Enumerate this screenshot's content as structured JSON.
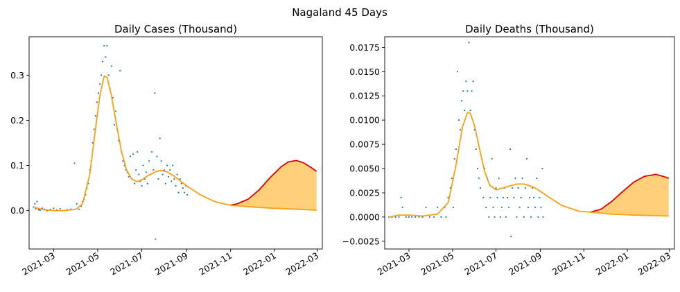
{
  "figure": {
    "title": "Nagaland 45 Days"
  },
  "colors": {
    "scatter": "#1f77b4",
    "fit": "#ff9f10",
    "forecast_line": "#e00000",
    "forecast_fill": "#ffcf7a"
  },
  "chart_data": [
    {
      "type": "scatter",
      "title": "Daily Cases (Thousand)",
      "xlabel": "",
      "ylabel": "",
      "x_ticks": [
        "2021-03",
        "2021-05",
        "2021-07",
        "2021-09",
        "2021-11",
        "2022-01",
        "2022-03"
      ],
      "y_ticks": [
        0.0,
        0.1,
        0.2,
        0.3
      ],
      "y_tick_labels": [
        "0.0",
        "0.1",
        "0.2",
        "0.3"
      ],
      "xlim": [
        "2021-01-26",
        "2022-03-08"
      ],
      "ylim": [
        -0.085,
        0.385
      ],
      "grid": false,
      "scatter_points": [
        [
          "2021-02-01",
          0.008
        ],
        [
          "2021-02-03",
          0.015
        ],
        [
          "2021-02-04",
          0.004
        ],
        [
          "2021-02-06",
          0.02
        ],
        [
          "2021-02-08",
          0.002
        ],
        [
          "2021-02-10",
          0.001
        ],
        [
          "2021-02-13",
          0.005
        ],
        [
          "2021-02-16",
          0.003
        ],
        [
          "2021-02-20",
          0.0
        ],
        [
          "2021-02-24",
          0.002
        ],
        [
          "2021-03-01",
          0.005
        ],
        [
          "2021-03-05",
          0.001
        ],
        [
          "2021-03-10",
          0.004
        ],
        [
          "2021-03-15",
          0.0
        ],
        [
          "2021-03-20",
          0.002
        ],
        [
          "2021-03-25",
          0.003
        ],
        [
          "2021-03-30",
          0.105
        ],
        [
          "2021-04-02",
          0.015
        ],
        [
          "2021-04-05",
          0.003
        ],
        [
          "2021-04-08",
          0.01
        ],
        [
          "2021-04-10",
          0.02
        ],
        [
          "2021-04-12",
          0.025
        ],
        [
          "2021-04-14",
          0.035
        ],
        [
          "2021-04-16",
          0.05
        ],
        [
          "2021-04-18",
          0.06
        ],
        [
          "2021-04-20",
          0.09
        ],
        [
          "2021-04-22",
          0.11
        ],
        [
          "2021-04-24",
          0.15
        ],
        [
          "2021-04-26",
          0.18
        ],
        [
          "2021-04-28",
          0.21
        ],
        [
          "2021-04-30",
          0.24
        ],
        [
          "2021-05-02",
          0.26
        ],
        [
          "2021-05-04",
          0.28
        ],
        [
          "2021-05-06",
          0.3
        ],
        [
          "2021-05-08",
          0.33
        ],
        [
          "2021-05-10",
          0.365
        ],
        [
          "2021-05-12",
          0.34
        ],
        [
          "2021-05-14",
          0.365
        ],
        [
          "2021-05-16",
          0.3
        ],
        [
          "2021-05-18",
          0.27
        ],
        [
          "2021-05-20",
          0.32
        ],
        [
          "2021-05-22",
          0.25
        ],
        [
          "2021-05-24",
          0.19
        ],
        [
          "2021-05-26",
          0.22
        ],
        [
          "2021-05-28",
          0.18
        ],
        [
          "2021-05-30",
          0.155
        ],
        [
          "2021-06-01",
          0.31
        ],
        [
          "2021-06-03",
          0.13
        ],
        [
          "2021-06-05",
          0.11
        ],
        [
          "2021-06-07",
          0.1
        ],
        [
          "2021-06-09",
          0.09
        ],
        [
          "2021-06-11",
          0.085
        ],
        [
          "2021-06-13",
          0.075
        ],
        [
          "2021-06-15",
          0.12
        ],
        [
          "2021-06-17",
          0.07
        ],
        [
          "2021-06-19",
          0.125
        ],
        [
          "2021-06-21",
          0.06
        ],
        [
          "2021-06-23",
          0.09
        ],
        [
          "2021-06-25",
          0.13
        ],
        [
          "2021-06-27",
          0.08
        ],
        [
          "2021-06-29",
          0.065
        ],
        [
          "2021-07-01",
          0.055
        ],
        [
          "2021-07-03",
          0.1
        ],
        [
          "2021-07-05",
          0.07
        ],
        [
          "2021-07-07",
          0.085
        ],
        [
          "2021-07-09",
          0.06
        ],
        [
          "2021-07-11",
          0.11
        ],
        [
          "2021-07-13",
          0.08
        ],
        [
          "2021-07-15",
          0.13
        ],
        [
          "2021-07-17",
          0.09
        ],
        [
          "2021-07-19",
          0.26
        ],
        [
          "2021-07-20",
          -0.063
        ],
        [
          "2021-07-22",
          0.12
        ],
        [
          "2021-07-24",
          0.07
        ],
        [
          "2021-07-26",
          0.16
        ],
        [
          "2021-07-28",
          0.11
        ],
        [
          "2021-07-30",
          0.08
        ],
        [
          "2021-08-01",
          0.09
        ],
        [
          "2021-08-03",
          0.06
        ],
        [
          "2021-08-05",
          0.1
        ],
        [
          "2021-08-07",
          0.075
        ],
        [
          "2021-08-09",
          0.09
        ],
        [
          "2021-08-11",
          0.065
        ],
        [
          "2021-08-13",
          0.1
        ],
        [
          "2021-08-15",
          0.07
        ],
        [
          "2021-08-17",
          0.055
        ],
        [
          "2021-08-19",
          0.08
        ],
        [
          "2021-08-21",
          0.04
        ],
        [
          "2021-08-23",
          0.07
        ],
        [
          "2021-08-25",
          0.06
        ],
        [
          "2021-08-27",
          0.05
        ],
        [
          "2021-08-29",
          0.04
        ],
        [
          "2021-08-31",
          0.055
        ],
        [
          "2021-09-02",
          0.035
        ]
      ],
      "fit_curve": [
        [
          "2021-02-01",
          0.008
        ],
        [
          "2021-02-15",
          0.002
        ],
        [
          "2021-03-01",
          0.0
        ],
        [
          "2021-03-15",
          0.0
        ],
        [
          "2021-04-01",
          0.003
        ],
        [
          "2021-04-10",
          0.015
        ],
        [
          "2021-04-20",
          0.08
        ],
        [
          "2021-04-27",
          0.17
        ],
        [
          "2021-05-04",
          0.255
        ],
        [
          "2021-05-10",
          0.298
        ],
        [
          "2021-05-14",
          0.295
        ],
        [
          "2021-05-20",
          0.255
        ],
        [
          "2021-05-27",
          0.19
        ],
        [
          "2021-06-03",
          0.13
        ],
        [
          "2021-06-10",
          0.09
        ],
        [
          "2021-06-17",
          0.07
        ],
        [
          "2021-06-24",
          0.064
        ],
        [
          "2021-07-01",
          0.068
        ],
        [
          "2021-07-10",
          0.078
        ],
        [
          "2021-07-20",
          0.086
        ],
        [
          "2021-07-27",
          0.089
        ],
        [
          "2021-08-05",
          0.086
        ],
        [
          "2021-08-15",
          0.076
        ],
        [
          "2021-09-01",
          0.055
        ],
        [
          "2021-09-20",
          0.035
        ],
        [
          "2021-10-10",
          0.02
        ],
        [
          "2021-10-31",
          0.012
        ]
      ],
      "forecast_upper": [
        [
          "2021-10-31",
          0.012
        ],
        [
          "2021-11-10",
          0.015
        ],
        [
          "2021-11-25",
          0.025
        ],
        [
          "2021-12-10",
          0.045
        ],
        [
          "2021-12-25",
          0.072
        ],
        [
          "2022-01-10",
          0.097
        ],
        [
          "2022-01-20",
          0.108
        ],
        [
          "2022-01-31",
          0.111
        ],
        [
          "2022-02-10",
          0.106
        ],
        [
          "2022-02-20",
          0.096
        ],
        [
          "2022-02-28",
          0.087
        ]
      ],
      "forecast_lower": [
        [
          "2021-10-31",
          0.012
        ],
        [
          "2021-12-01",
          0.008
        ],
        [
          "2022-01-01",
          0.005
        ],
        [
          "2022-02-01",
          0.003
        ],
        [
          "2022-02-28",
          0.001
        ]
      ]
    },
    {
      "type": "scatter",
      "title": "Daily Deaths (Thousand)",
      "xlabel": "",
      "ylabel": "",
      "x_ticks": [
        "2021-03",
        "2021-05",
        "2021-07",
        "2021-09",
        "2021-11",
        "2022-01",
        "2022-03"
      ],
      "y_ticks": [
        -0.0025,
        0.0,
        0.0025,
        0.005,
        0.0075,
        0.01,
        0.0125,
        0.015,
        0.0175
      ],
      "y_tick_labels": [
        "−0.0025",
        "0.0000",
        "0.0025",
        "0.0050",
        "0.0075",
        "0.0100",
        "0.0125",
        "0.0150",
        "0.0175"
      ],
      "xlim": [
        "2021-01-26",
        "2022-03-08"
      ],
      "ylim": [
        -0.0033,
        0.0186
      ],
      "grid": false,
      "scatter_points": [
        [
          "2021-02-01",
          0.0
        ],
        [
          "2021-02-05",
          0.0
        ],
        [
          "2021-02-10",
          0.0
        ],
        [
          "2021-02-15",
          0.0
        ],
        [
          "2021-02-18",
          0.002
        ],
        [
          "2021-02-20",
          0.001
        ],
        [
          "2021-02-25",
          0.0
        ],
        [
          "2021-03-01",
          0.0
        ],
        [
          "2021-03-05",
          0.0
        ],
        [
          "2021-03-10",
          0.0
        ],
        [
          "2021-03-15",
          0.0
        ],
        [
          "2021-03-20",
          0.0
        ],
        [
          "2021-03-25",
          0.001
        ],
        [
          "2021-03-30",
          0.0
        ],
        [
          "2021-04-05",
          0.0
        ],
        [
          "2021-04-10",
          0.001
        ],
        [
          "2021-04-15",
          0.0
        ],
        [
          "2021-04-20",
          0.001
        ],
        [
          "2021-04-22",
          0.0
        ],
        [
          "2021-04-25",
          0.002
        ],
        [
          "2021-04-28",
          0.003
        ],
        [
          "2021-04-30",
          0.004
        ],
        [
          "2021-05-02",
          0.001
        ],
        [
          "2021-05-04",
          0.006
        ],
        [
          "2021-05-06",
          0.007
        ],
        [
          "2021-05-08",
          0.015
        ],
        [
          "2021-05-10",
          0.01
        ],
        [
          "2021-05-12",
          0.009
        ],
        [
          "2021-05-14",
          0.012
        ],
        [
          "2021-05-16",
          0.013
        ],
        [
          "2021-05-18",
          0.011
        ],
        [
          "2021-05-20",
          0.014
        ],
        [
          "2021-05-22",
          0.013
        ],
        [
          "2021-05-24",
          0.018
        ],
        [
          "2021-05-26",
          0.011
        ],
        [
          "2021-05-28",
          0.013
        ],
        [
          "2021-05-30",
          0.014
        ],
        [
          "2021-06-01",
          0.009
        ],
        [
          "2021-06-03",
          0.007
        ],
        [
          "2021-06-05",
          0.005
        ],
        [
          "2021-06-07",
          0.004
        ],
        [
          "2021-06-09",
          0.003
        ],
        [
          "2021-06-11",
          0.006
        ],
        [
          "2021-06-13",
          0.002
        ],
        [
          "2021-06-15",
          0.005
        ],
        [
          "2021-06-17",
          0.001
        ],
        [
          "2021-06-19",
          0.004
        ],
        [
          "2021-06-21",
          0.0
        ],
        [
          "2021-06-23",
          0.002
        ],
        [
          "2021-06-25",
          0.006
        ],
        [
          "2021-06-27",
          0.001
        ],
        [
          "2021-06-29",
          0.0
        ],
        [
          "2021-07-01",
          0.003
        ],
        [
          "2021-07-03",
          0.002
        ],
        [
          "2021-07-05",
          0.004
        ],
        [
          "2021-07-07",
          0.0
        ],
        [
          "2021-07-09",
          0.001
        ],
        [
          "2021-07-11",
          0.002
        ],
        [
          "2021-07-13",
          0.003
        ],
        [
          "2021-07-15",
          0.0
        ],
        [
          "2021-07-17",
          0.002
        ],
        [
          "2021-07-19",
          0.001
        ],
        [
          "2021-07-21",
          0.007
        ],
        [
          "2021-07-22",
          -0.002
        ],
        [
          "2021-07-24",
          0.003
        ],
        [
          "2021-07-26",
          0.002
        ],
        [
          "2021-07-28",
          0.004
        ],
        [
          "2021-07-30",
          0.0
        ],
        [
          "2021-08-01",
          0.003
        ],
        [
          "2021-08-03",
          0.001
        ],
        [
          "2021-08-05",
          0.002
        ],
        [
          "2021-08-07",
          0.004
        ],
        [
          "2021-08-09",
          0.0
        ],
        [
          "2021-08-11",
          0.003
        ],
        [
          "2021-08-13",
          0.006
        ],
        [
          "2021-08-15",
          0.001
        ],
        [
          "2021-08-17",
          0.002
        ],
        [
          "2021-08-19",
          0.0
        ],
        [
          "2021-08-21",
          0.003
        ],
        [
          "2021-08-23",
          0.002
        ],
        [
          "2021-08-25",
          0.001
        ],
        [
          "2021-08-27",
          0.004
        ],
        [
          "2021-08-29",
          0.0
        ],
        [
          "2021-08-31",
          0.002
        ],
        [
          "2021-09-02",
          0.001
        ],
        [
          "2021-09-04",
          0.005
        ],
        [
          "2021-09-05",
          0.0
        ]
      ],
      "fit_curve": [
        [
          "2021-02-01",
          0.0
        ],
        [
          "2021-02-15",
          0.0002
        ],
        [
          "2021-03-01",
          0.0002
        ],
        [
          "2021-03-20",
          0.0001
        ],
        [
          "2021-04-10",
          0.0003
        ],
        [
          "2021-04-25",
          0.0015
        ],
        [
          "2021-05-05",
          0.005
        ],
        [
          "2021-05-15",
          0.0093
        ],
        [
          "2021-05-22",
          0.0108
        ],
        [
          "2021-05-26",
          0.0107
        ],
        [
          "2021-06-01",
          0.0094
        ],
        [
          "2021-06-08",
          0.007
        ],
        [
          "2021-06-15",
          0.0047
        ],
        [
          "2021-06-22",
          0.0033
        ],
        [
          "2021-07-01",
          0.0028
        ],
        [
          "2021-07-15",
          0.0031
        ],
        [
          "2021-07-30",
          0.0034
        ],
        [
          "2021-08-10",
          0.0034
        ],
        [
          "2021-08-25",
          0.003
        ],
        [
          "2021-09-10",
          0.0022
        ],
        [
          "2021-10-01",
          0.0012
        ],
        [
          "2021-10-25",
          0.0006
        ],
        [
          "2021-11-10",
          0.0005
        ]
      ],
      "forecast_upper": [
        [
          "2021-11-10",
          0.0005
        ],
        [
          "2021-11-25",
          0.0008
        ],
        [
          "2021-12-10",
          0.0016
        ],
        [
          "2021-12-25",
          0.0026
        ],
        [
          "2022-01-10",
          0.0036
        ],
        [
          "2022-01-25",
          0.0042
        ],
        [
          "2022-02-10",
          0.0044
        ],
        [
          "2022-02-20",
          0.0042
        ],
        [
          "2022-02-28",
          0.004
        ]
      ],
      "forecast_lower": [
        [
          "2021-11-10",
          0.0005
        ],
        [
          "2021-12-10",
          0.0003
        ],
        [
          "2022-01-10",
          0.0002
        ],
        [
          "2022-02-28",
          0.0001
        ]
      ]
    }
  ]
}
